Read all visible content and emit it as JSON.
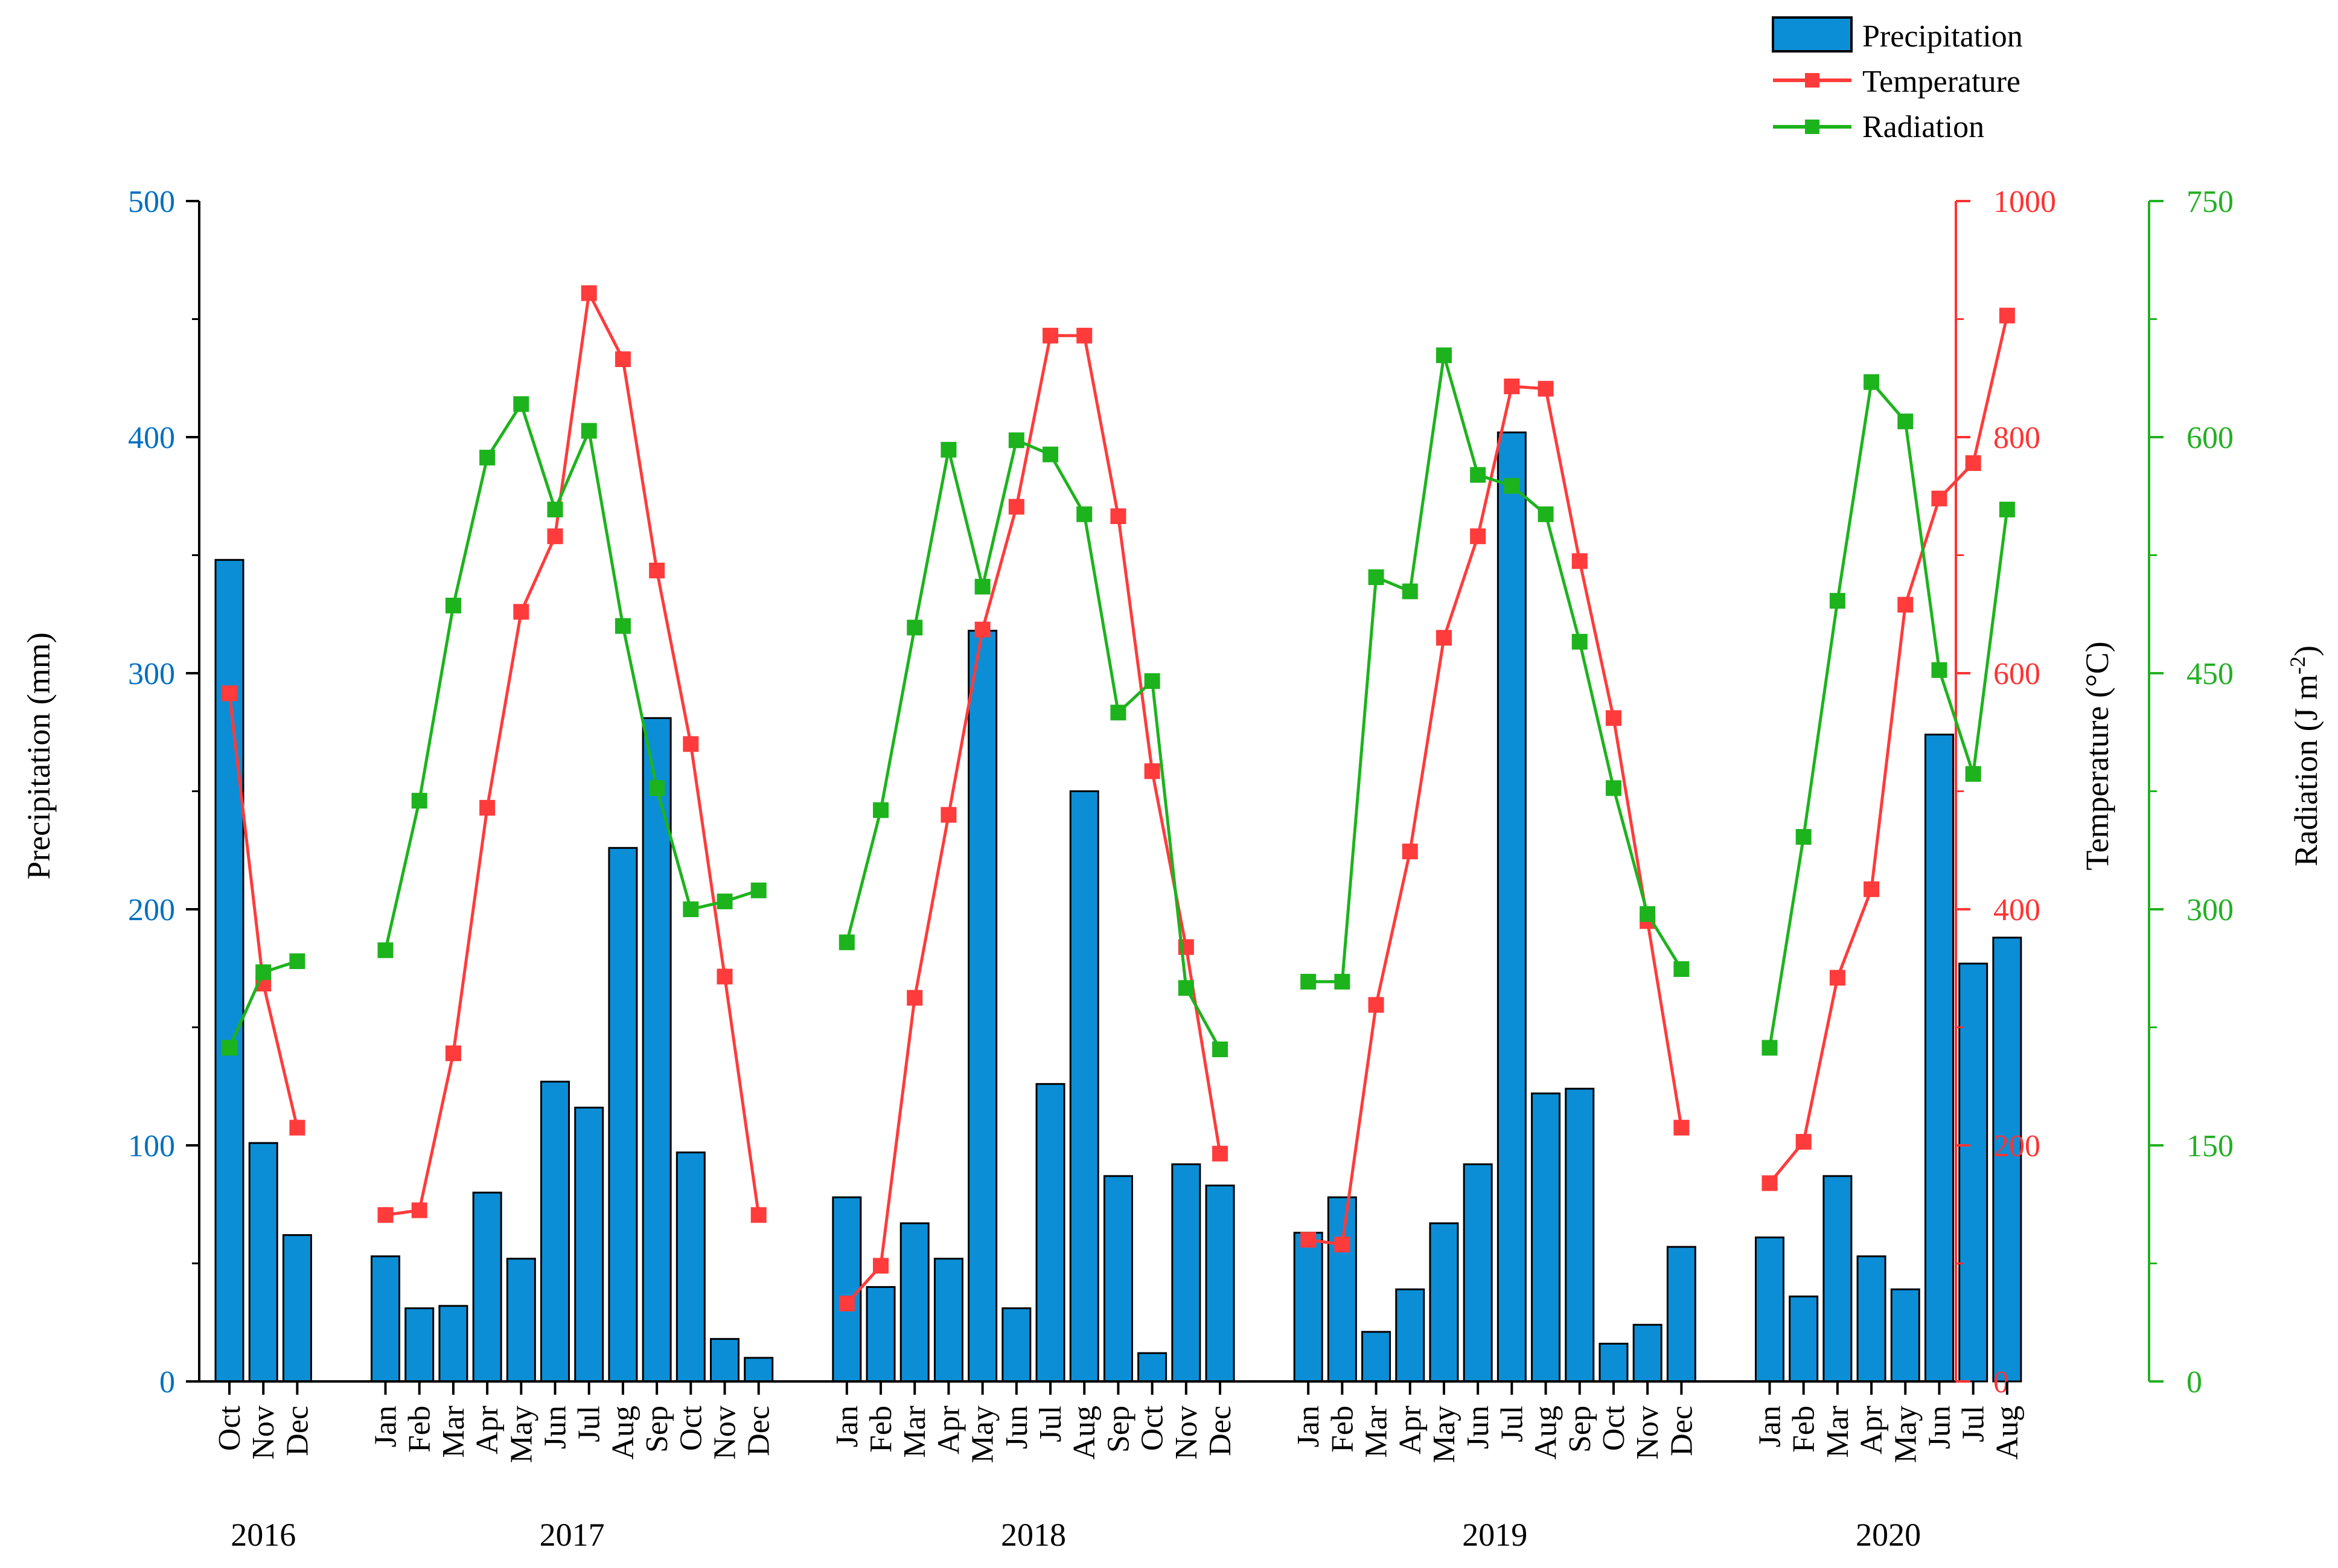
{
  "chart_data": {
    "type": "combo-bar-line",
    "legend": {
      "position": "top-right",
      "entries": [
        "Precipitation",
        "Temperature",
        "Radiation"
      ]
    },
    "axes": {
      "left": {
        "label": "Precipitation (mm)",
        "min": 0,
        "max": 500,
        "ticks": [
          "0",
          "100",
          "200",
          "300",
          "400",
          "500"
        ],
        "color": "#0070c0"
      },
      "right1": {
        "label": "Temperature (°C)",
        "min": 0,
        "max": 1000,
        "ticks": [
          "0",
          "200",
          "400",
          "600",
          "800",
          "1000"
        ],
        "color": "#ff3333"
      },
      "right2": {
        "label_prefix": "Radiation (J m",
        "label_superscript": "-2",
        "label_suffix": ")",
        "min": 0,
        "max": 750,
        "ticks": [
          "0",
          "150",
          "300",
          "450",
          "600",
          "750"
        ],
        "color": "#22b022"
      }
    },
    "colors": {
      "bar": "#0c8ed6",
      "bar_stroke": "#000000",
      "temperature": "#ff3b3b",
      "radiation": "#1db31d",
      "left_axis": "#0070c0"
    },
    "years": [
      {
        "label": "2016",
        "months": [
          "Oct",
          "Nov",
          "Dec"
        ]
      },
      {
        "label": "2017",
        "months": [
          "Jan",
          "Feb",
          "Mar",
          "Apr",
          "May",
          "Jun",
          "Jul",
          "Aug",
          "Sep",
          "Oct",
          "Nov",
          "Dec"
        ]
      },
      {
        "label": "2018",
        "months": [
          "Jan",
          "Feb",
          "Mar",
          "Apr",
          "May",
          "Jun",
          "Jul",
          "Aug",
          "Sep",
          "Oct",
          "Nov",
          "Dec"
        ]
      },
      {
        "label": "2019",
        "months": [
          "Jan",
          "Feb",
          "Mar",
          "Apr",
          "May",
          "Jun",
          "Jul",
          "Aug",
          "Sep",
          "Oct",
          "Nov",
          "Dec"
        ]
      },
      {
        "label": "2020",
        "months": [
          "Jan",
          "Feb",
          "Mar",
          "Apr",
          "May",
          "Jun",
          "Jul",
          "Aug"
        ]
      }
    ],
    "series": [
      {
        "name": "Precipitation",
        "axis": "left",
        "kind": "bar",
        "values": [
          [
            348,
            101,
            62
          ],
          [
            53,
            31,
            32,
            80,
            52,
            127,
            116,
            226,
            281,
            97,
            18,
            10
          ],
          [
            78,
            40,
            67,
            52,
            318,
            31,
            126,
            250,
            87,
            12,
            92,
            83
          ],
          [
            63,
            78,
            21,
            39,
            67,
            92,
            402,
            122,
            124,
            16,
            24,
            57
          ],
          [
            61,
            36,
            87,
            53,
            39,
            274,
            177,
            188
          ]
        ]
      },
      {
        "name": "Temperature",
        "axis": "right1",
        "kind": "line",
        "values": [
          [
            583,
            337,
            215
          ],
          [
            141,
            145,
            278,
            486,
            652,
            716,
            922,
            866,
            687,
            540,
            343,
            141
          ],
          [
            66,
            98,
            325,
            480,
            637,
            741,
            886,
            886,
            733,
            517,
            368,
            193
          ],
          [
            120,
            116,
            319,
            449,
            630,
            716,
            843,
            841,
            695,
            562,
            390,
            215
          ],
          [
            168,
            203,
            342,
            417,
            658,
            748,
            778,
            903
          ]
        ]
      },
      {
        "name": "Radiation",
        "axis": "right2",
        "kind": "line",
        "values": [
          [
            212,
            260,
            267
          ],
          [
            274,
            369,
            493,
            587,
            621,
            554,
            604,
            480,
            377,
            300,
            305,
            312
          ],
          [
            279,
            363,
            479,
            592,
            505,
            598,
            589,
            551,
            425,
            445,
            250,
            211
          ],
          [
            254,
            254,
            511,
            502,
            652,
            576,
            569,
            551,
            470,
            377,
            297,
            262
          ],
          [
            212,
            346,
            496,
            635,
            610,
            452,
            386,
            554
          ]
        ]
      }
    ]
  }
}
